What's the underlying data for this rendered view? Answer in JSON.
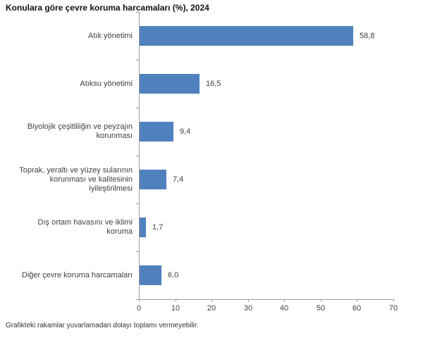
{
  "title": "Konulara göre çevre koruma harcamaları (%), 2024",
  "footnote": "Grafikteki rakamlar yuvarlamadan dolayı toplamı vermeyebilir.",
  "chart_data": {
    "type": "bar",
    "orientation": "horizontal",
    "title": "Konulara göre çevre koruma harcamaları (%), 2024",
    "categories": [
      "Atık yönetimi",
      "Atıksu yönetimi",
      "Biyolojik çeşitliliğin ve peyzajın korunması",
      "Toprak, yeraltı ve yüzey sularının korunması ve kalitesinin iyileştirilmesi",
      "Dış ortam havasını ve iklimi koruma",
      "Diğer çevre koruma harcamaları"
    ],
    "values": [
      58.8,
      16.5,
      9.4,
      7.4,
      1.7,
      6.0
    ],
    "value_labels": [
      "58,8",
      "16,5",
      "9,4",
      "7,4",
      "1,7",
      "6,0"
    ],
    "xlabel": "",
    "ylabel": "",
    "xlim": [
      0,
      70
    ],
    "x_ticks": [
      0,
      10,
      20,
      30,
      40,
      50,
      60,
      70
    ],
    "bar_color": "#4e81bd",
    "axis_color": "#9c9c9c",
    "label_color": "#404040",
    "grid": false,
    "legend": "none",
    "footnote": "Grafikteki rakamlar yuvarlamadan dolayı toplamı vermeyebilir."
  }
}
